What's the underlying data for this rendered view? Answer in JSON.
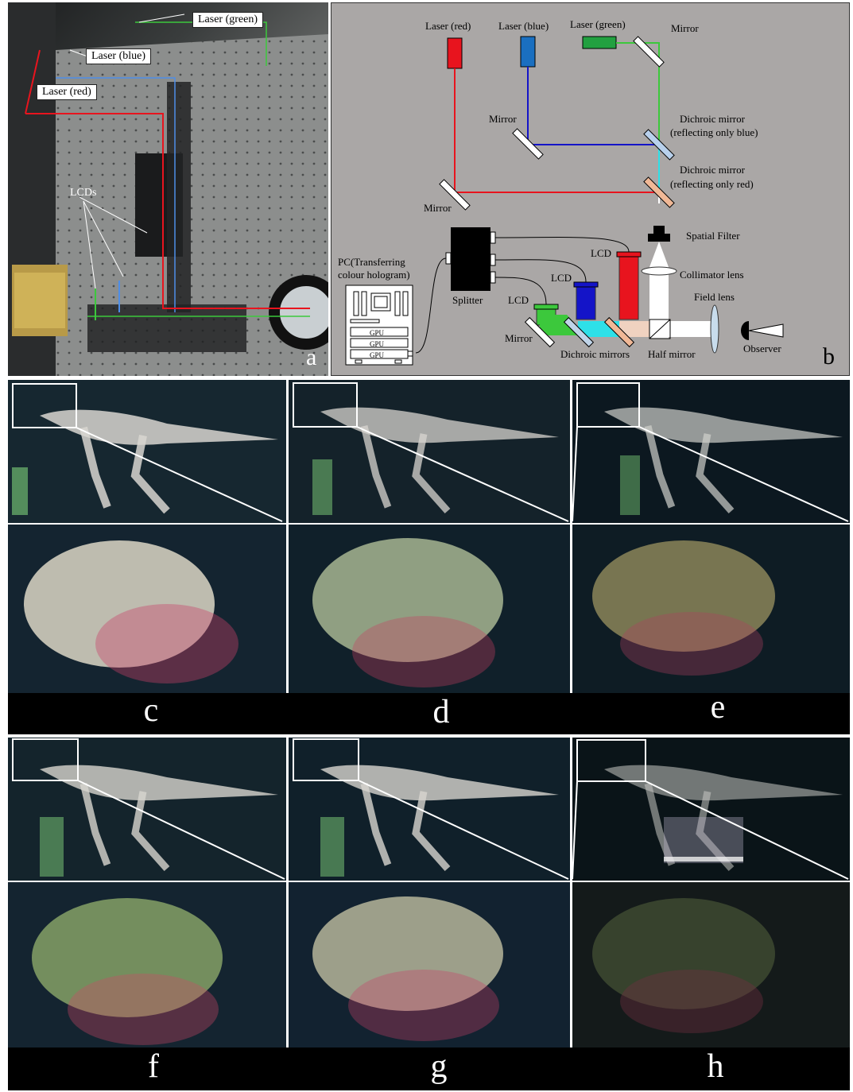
{
  "panel_a": {
    "letter": "a",
    "labels": {
      "laser_green": "Laser (green)",
      "laser_blue": "Laser (blue)",
      "laser_red": "Laser (red)",
      "lcds": "LCDs"
    }
  },
  "panel_b": {
    "letter": "b",
    "labels": {
      "laser_red": "Laser (red)",
      "laser_blue": "Laser (blue)",
      "laser_green": "Laser (green)",
      "mirror_top": "Mirror",
      "mirror_mid": "Mirror",
      "mirror_left": "Mirror",
      "mirror_bottom": "Mirror",
      "dichroic_blue_1": "Dichroic mirror",
      "dichroic_blue_2": "(reflecting only blue)",
      "dichroic_red_1": "Dichroic mirror",
      "dichroic_red_2": "(reflecting only red)",
      "spatial_filter": "Spatial Filter",
      "collimator": "Collimator lens",
      "field_lens": "Field lens",
      "observer": "Observer",
      "half_mirror": "Half mirror",
      "dichroic_mirrors": "Dichroic mirrors",
      "splitter": "Splitter",
      "pc_1": "PC(Transferring",
      "pc_2": "colour hologram)",
      "gpu": "GPU",
      "lcd": "LCD"
    },
    "colors": {
      "background": "#aaa7a6",
      "red": "#e8141e",
      "blue": "#1414c8",
      "green": "#3cc83c",
      "cyan": "#2ee0e8"
    }
  },
  "result_panels": [
    {
      "letter": "c",
      "name": "panel-c"
    },
    {
      "letter": "d",
      "name": "panel-d"
    },
    {
      "letter": "e",
      "name": "panel-e"
    },
    {
      "letter": "f",
      "name": "panel-f"
    },
    {
      "letter": "g",
      "name": "panel-g"
    },
    {
      "letter": "h",
      "name": "panel-h"
    }
  ]
}
